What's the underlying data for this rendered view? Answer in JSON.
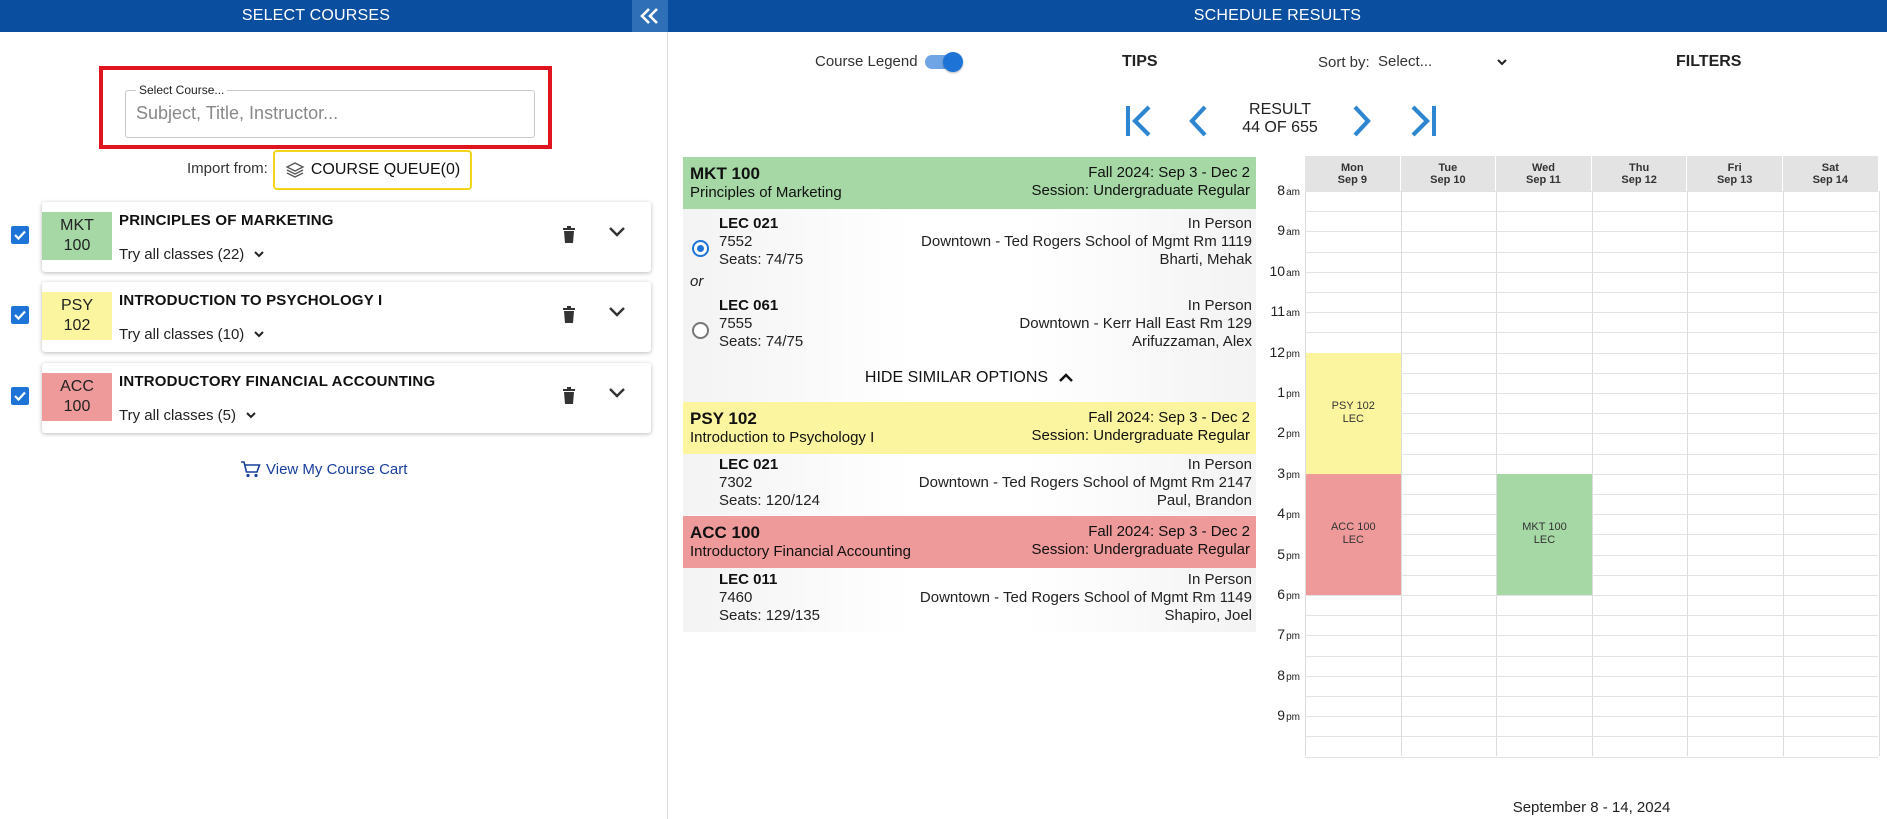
{
  "left_panel": {
    "title": "SELECT COURSES",
    "collapse_icon": "double-chevron-left-icon",
    "search": {
      "label": "Select Course...",
      "placeholder": "Subject, Title, Instructor...",
      "value": ""
    },
    "import_label": "Import from:",
    "course_queue_label": "COURSE QUEUE(0)",
    "courses": [
      {
        "code_line1": "MKT",
        "code_line2": "100",
        "title": "PRINCIPLES OF MARKETING",
        "try_label": "Try all classes (22)",
        "color": "#a5d8a5",
        "checked": true
      },
      {
        "code_line1": "PSY",
        "code_line2": "102",
        "title": "INTRODUCTION TO PSYCHOLOGY I",
        "try_label": "Try all classes (10)",
        "color": "#fbf5a0",
        "checked": true
      },
      {
        "code_line1": "ACC",
        "code_line2": "100",
        "title": "INTRODUCTORY FINANCIAL ACCOUNTING",
        "try_label": "Try all classes (5)",
        "color": "#ee9a9a",
        "checked": true
      }
    ],
    "cart_link": "View My Course Cart"
  },
  "right_panel": {
    "title": "SCHEDULE RESULTS",
    "course_legend_label": "Course Legend",
    "course_legend_on": true,
    "tips_label": "TIPS",
    "sort_label": "Sort by:",
    "sort_value": "Select...",
    "filters_label": "FILTERS",
    "result_label": "RESULT",
    "result_count": "44 OF 655"
  },
  "results": [
    {
      "code": "MKT 100",
      "name": "Principles of Marketing",
      "term": "Fall 2024: Sep 3 - Dec 2",
      "session": "Session: Undergraduate Regular",
      "color": "#a5d8a5",
      "sections": [
        {
          "type": "LEC 021",
          "number": "7552",
          "seats": "Seats: 74/75",
          "mode": "In Person",
          "location": "Downtown - Ted Rogers School of Mgmt Rm 1119",
          "instructor": "Bharti, Mehak",
          "selected": true
        },
        {
          "type": "LEC 061",
          "number": "7555",
          "seats": "Seats: 74/75",
          "mode": "In Person",
          "location": "Downtown - Kerr Hall East Rm 129",
          "instructor": "Arifuzzaman, Alex",
          "selected": false
        }
      ],
      "or_label": "or",
      "hide_similar_label": "HIDE SIMILAR OPTIONS"
    },
    {
      "code": "PSY 102",
      "name": "Introduction to Psychology I",
      "term": "Fall 2024: Sep 3 - Dec 2",
      "session": "Session: Undergraduate Regular",
      "color": "#fbf5a0",
      "sections": [
        {
          "type": "LEC 021",
          "number": "7302",
          "seats": "Seats: 120/124",
          "mode": "In Person",
          "location": "Downtown - Ted Rogers School of Mgmt Rm 2147",
          "instructor": "Paul, Brandon"
        }
      ]
    },
    {
      "code": "ACC 100",
      "name": "Introductory Financial Accounting",
      "term": "Fall 2024: Sep 3 - Dec 2",
      "session": "Session: Undergraduate Regular",
      "color": "#ee9a9a",
      "sections": [
        {
          "type": "LEC 011",
          "number": "7460",
          "seats": "Seats: 129/135",
          "mode": "In Person",
          "location": "Downtown - Ted Rogers School of Mgmt Rm 1149",
          "instructor": "Shapiro, Joel"
        }
      ]
    }
  ],
  "calendar": {
    "days": [
      {
        "name": "Mon",
        "date": "Sep 9"
      },
      {
        "name": "Tue",
        "date": "Sep 10"
      },
      {
        "name": "Wed",
        "date": "Sep 11"
      },
      {
        "name": "Thu",
        "date": "Sep 12"
      },
      {
        "name": "Fri",
        "date": "Sep 13"
      },
      {
        "name": "Sat",
        "date": "Sep 14"
      }
    ],
    "hours": [
      {
        "h": "8",
        "ap": "am"
      },
      {
        "h": "9",
        "ap": "am"
      },
      {
        "h": "10",
        "ap": "am"
      },
      {
        "h": "11",
        "ap": "am"
      },
      {
        "h": "12",
        "ap": "pm"
      },
      {
        "h": "1",
        "ap": "pm"
      },
      {
        "h": "2",
        "ap": "pm"
      },
      {
        "h": "3",
        "ap": "pm"
      },
      {
        "h": "4",
        "ap": "pm"
      },
      {
        "h": "5",
        "ap": "pm"
      },
      {
        "h": "6",
        "ap": "pm"
      },
      {
        "h": "7",
        "ap": "pm"
      },
      {
        "h": "8",
        "ap": "pm"
      },
      {
        "h": "9",
        "ap": "pm"
      }
    ],
    "events": [
      {
        "line1": "PSY 102",
        "line2": "LEC",
        "day_index": 0,
        "start_hour": 12,
        "end_hour": 15,
        "color": "#fbf5a0"
      },
      {
        "line1": "ACC 100",
        "line2": "LEC",
        "day_index": 0,
        "start_hour": 15,
        "end_hour": 18,
        "color": "#ee9a9a"
      },
      {
        "line1": "MKT 100",
        "line2": "LEC",
        "day_index": 2,
        "start_hour": 15,
        "end_hour": 18,
        "color": "#a5d8a5"
      }
    ],
    "week_label": "September 8 - 14, 2024"
  }
}
